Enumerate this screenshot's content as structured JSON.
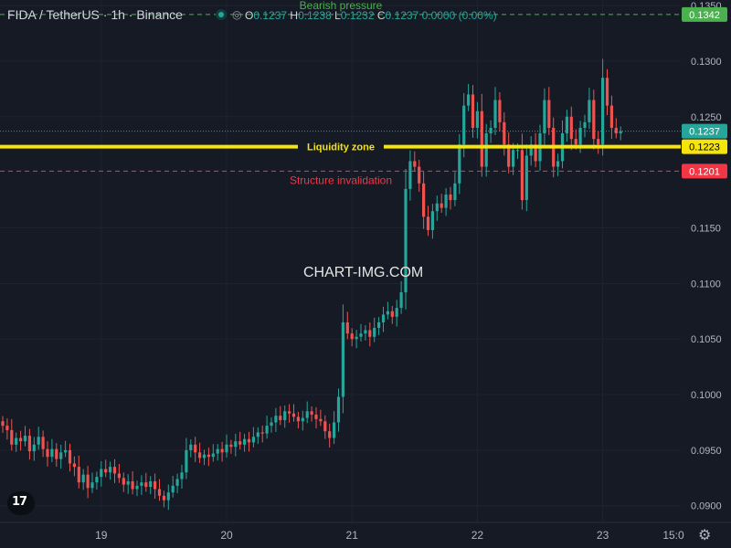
{
  "header": {
    "symbol": "FIDA / TetherUS · 1h · Binance",
    "ohlc": [
      {
        "k": "O",
        "v": "0.1237"
      },
      {
        "k": "H",
        "v": "0.1238"
      },
      {
        "k": "L",
        "v": "0.1232"
      },
      {
        "k": "C",
        "v": "0.1237"
      },
      {
        "k": "",
        "v": "0.0000 (0.00%)"
      }
    ]
  },
  "watermark": "CHART-IMG.COM",
  "colors": {
    "background": "#161a25",
    "up": "#26a69a",
    "down": "#ef5350",
    "liquidity": "#f5e50a",
    "invalidation": "#f23645",
    "target": "#4caf50",
    "last_price": "#26a69a"
  },
  "chart_data": {
    "type": "candlestick",
    "y_range": [
      0.0885,
      0.1355
    ],
    "x_ticks": [
      "19",
      "20",
      "21",
      "22",
      "23",
      "15:0"
    ],
    "y_ticks": [
      "0.0900",
      "0.0950",
      "0.1000",
      "0.1050",
      "0.1100",
      "0.1150",
      "0.1250",
      "0.1300",
      "0.1350"
    ],
    "levels": [
      {
        "label": "Bearish pressure",
        "price": "0.1342",
        "value": 0.1342,
        "style": "dashed",
        "color": "#4caf50"
      },
      {
        "label": "Liquidity zone",
        "price": "0.1223",
        "value": 0.1223,
        "style": "solid",
        "color": "#f5e50a"
      },
      {
        "label": "Structure invalidation",
        "price": "0.1201",
        "value": 0.1201,
        "style": "dashed",
        "color": "#f23645"
      }
    ],
    "last_price": {
      "price": "0.1237",
      "value": 0.1237
    },
    "closes": [
      0.0972,
      0.0968,
      0.0955,
      0.0961,
      0.0958,
      0.0963,
      0.0949,
      0.0955,
      0.0962,
      0.0951,
      0.0944,
      0.0951,
      0.0942,
      0.0948,
      0.095,
      0.0938,
      0.0935,
      0.0921,
      0.0928,
      0.0916,
      0.0921,
      0.0926,
      0.0933,
      0.093,
      0.0935,
      0.0929,
      0.0925,
      0.0919,
      0.0922,
      0.0915,
      0.0918,
      0.0921,
      0.0917,
      0.0922,
      0.0915,
      0.0909,
      0.0905,
      0.0912,
      0.0918,
      0.0924,
      0.093,
      0.095,
      0.0955,
      0.0948,
      0.0943,
      0.0946,
      0.0944,
      0.0947,
      0.0951,
      0.0948,
      0.0955,
      0.0953,
      0.0958,
      0.0955,
      0.096,
      0.0957,
      0.0962,
      0.0966,
      0.0965,
      0.0972,
      0.0975,
      0.0981,
      0.0977,
      0.0985,
      0.0983,
      0.098,
      0.0976,
      0.0979,
      0.0985,
      0.0982,
      0.0978,
      0.0976,
      0.0967,
      0.0961,
      0.0975,
      0.0998,
      0.1065,
      0.1055,
      0.105,
      0.1052,
      0.1055,
      0.1058,
      0.1052,
      0.106,
      0.1065,
      0.1072,
      0.1075,
      0.107,
      0.1078,
      0.1092,
      0.1185,
      0.121,
      0.1205,
      0.119,
      0.116,
      0.1148,
      0.1165,
      0.1172,
      0.1168,
      0.118,
      0.1175,
      0.119,
      0.1225,
      0.126,
      0.127,
      0.124,
      0.1255,
      0.1205,
      0.1235,
      0.124,
      0.1265,
      0.1245,
      0.1225,
      0.1205,
      0.122,
      0.122,
      0.1175,
      0.1215,
      0.1225,
      0.121,
      0.1235,
      0.1265,
      0.124,
      0.1205,
      0.121,
      0.1235,
      0.125,
      0.123,
      0.1225,
      0.124,
      0.1245,
      0.1265,
      0.123,
      0.1225,
      0.1285,
      0.126,
      0.124,
      0.1235,
      0.1237
    ]
  }
}
